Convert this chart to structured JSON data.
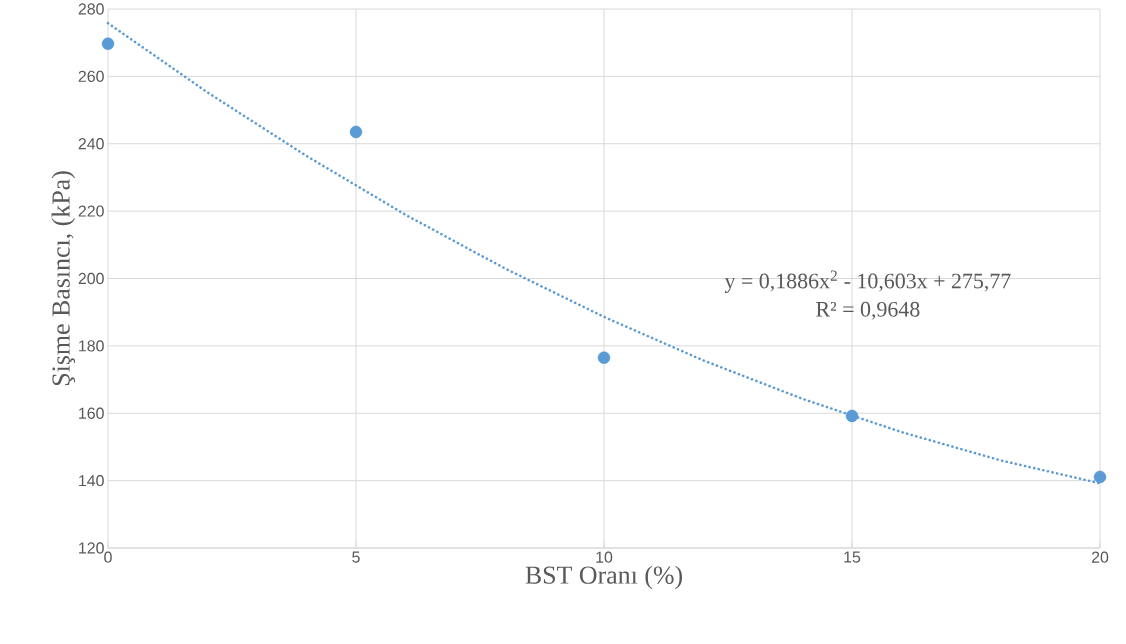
{
  "chart_data": {
    "type": "scatter",
    "xlabel": "BST Oranı (%)",
    "ylabel": "Şişme Basıncı, (kPa)",
    "x": [
      0,
      5,
      10,
      15,
      20
    ],
    "series": [
      {
        "color": "#5b9bd5",
        "marker": "circle",
        "values": [
          269.7,
          243.5,
          176.5,
          159.2,
          141.1
        ]
      },
      {
        "type": "line",
        "color": "#5b9bd5",
        "marker": "none",
        "line_style": "dotted",
        "x": [
          0,
          2,
          4,
          6,
          8,
          10,
          12,
          14,
          16,
          18,
          20
        ],
        "values": [
          275.8,
          255.3,
          236.4,
          218.9,
          203.0,
          188.6,
          175.7,
          164.3,
          154.4,
          146.0,
          139.2
        ]
      }
    ],
    "annotations": [
      "y = 0,1886x$^{2}$ - 10,603x + 275,77",
      "R² = 0,9648"
    ],
    "xlim": [
      0,
      20
    ],
    "ylim": [
      120,
      280
    ],
    "xticks": [
      0,
      5,
      10,
      15,
      20
    ],
    "yticks": [
      120,
      140,
      160,
      180,
      200,
      220,
      240,
      260,
      280
    ],
    "grid": true
  }
}
